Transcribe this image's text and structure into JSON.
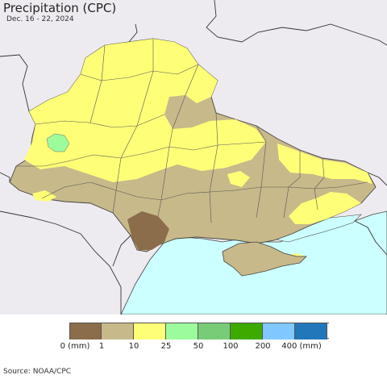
{
  "title": "Precipitation (CPC)",
  "subtitle": "Dec. 16 - 22, 2024",
  "legend": {
    "items": [
      {
        "label": "0 (mm)",
        "color": "#8b6d4b"
      },
      {
        "label": "1",
        "color": "#c8b98a"
      },
      {
        "label": "10",
        "color": "#ffff77"
      },
      {
        "label": "25",
        "color": "#9cfc9c"
      },
      {
        "label": "50",
        "color": "#78cc78"
      },
      {
        "label": "100",
        "color": "#3daa00"
      },
      {
        "label": "200",
        "color": "#80c8ff"
      },
      {
        "label": "400 (mm)",
        "color": "#2277bb"
      }
    ]
  },
  "colors": {
    "background": "#eeebf0",
    "sea": "#ccffff",
    "border": "#333333"
  },
  "source": "Source: NOAA/CPC"
}
